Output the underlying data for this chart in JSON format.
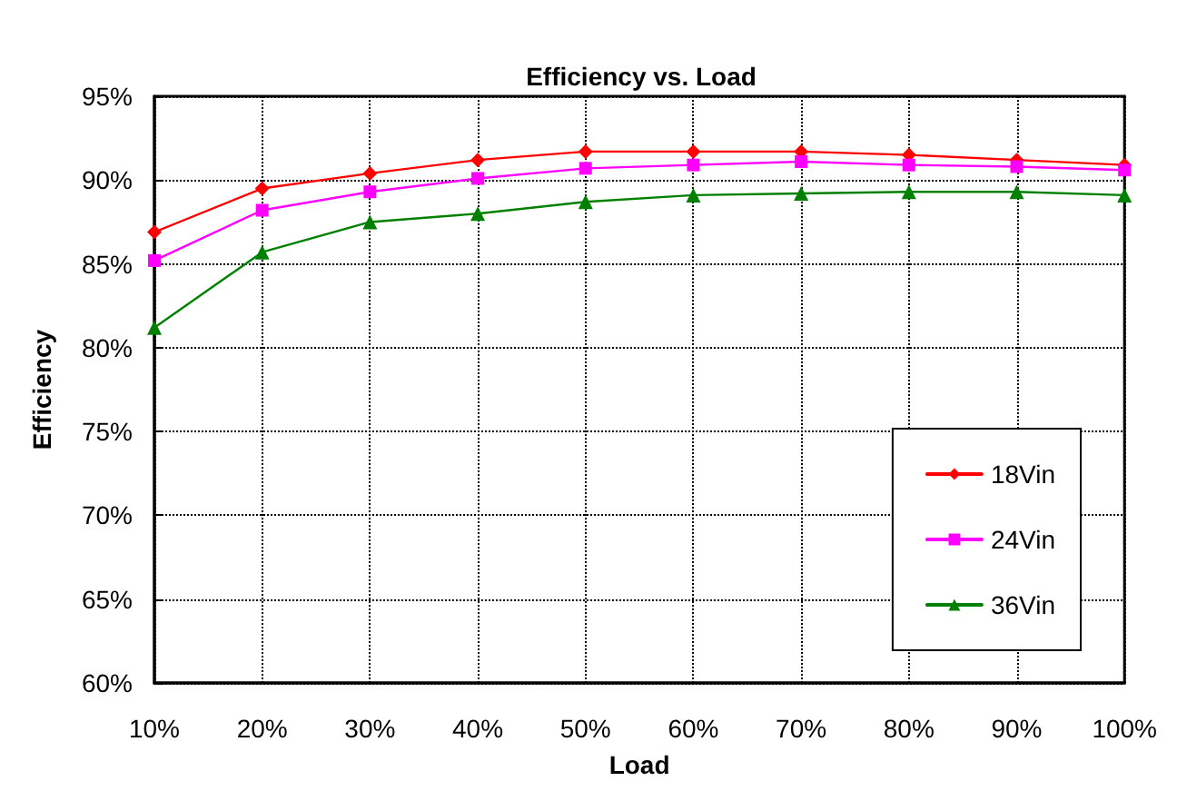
{
  "chart_data": {
    "type": "line",
    "title": "Efficiency vs. Load",
    "xlabel": "Load",
    "ylabel": "Efficiency",
    "categories": [
      "10%",
      "20%",
      "30%",
      "40%",
      "50%",
      "60%",
      "70%",
      "80%",
      "90%",
      "100%"
    ],
    "series": [
      {
        "name": "18Vin",
        "color": "#ff0000",
        "marker": "diamond",
        "values": [
          86.9,
          89.5,
          90.4,
          91.2,
          91.7,
          91.7,
          91.7,
          91.5,
          91.2,
          90.9
        ]
      },
      {
        "name": "24Vin",
        "color": "#ff00ff",
        "marker": "square",
        "values": [
          85.2,
          88.2,
          89.3,
          90.1,
          90.7,
          90.9,
          91.1,
          90.9,
          90.8,
          90.6
        ]
      },
      {
        "name": "36Vin",
        "color": "#008000",
        "marker": "triangle",
        "values": [
          81.2,
          85.7,
          87.5,
          88.0,
          88.7,
          89.1,
          89.2,
          89.3,
          89.3,
          89.1
        ]
      }
    ],
    "ylim": [
      60,
      95
    ],
    "yticks": [
      {
        "value": 60,
        "label": "60%"
      },
      {
        "value": 65,
        "label": "65%"
      },
      {
        "value": 70,
        "label": "70%"
      },
      {
        "value": 75,
        "label": "75%"
      },
      {
        "value": 80,
        "label": "80%"
      },
      {
        "value": 85,
        "label": "85%"
      },
      {
        "value": 90,
        "label": "90%"
      },
      {
        "value": 95,
        "label": "95%"
      }
    ],
    "grid": true,
    "legend": "right",
    "line_style": "solid"
  }
}
